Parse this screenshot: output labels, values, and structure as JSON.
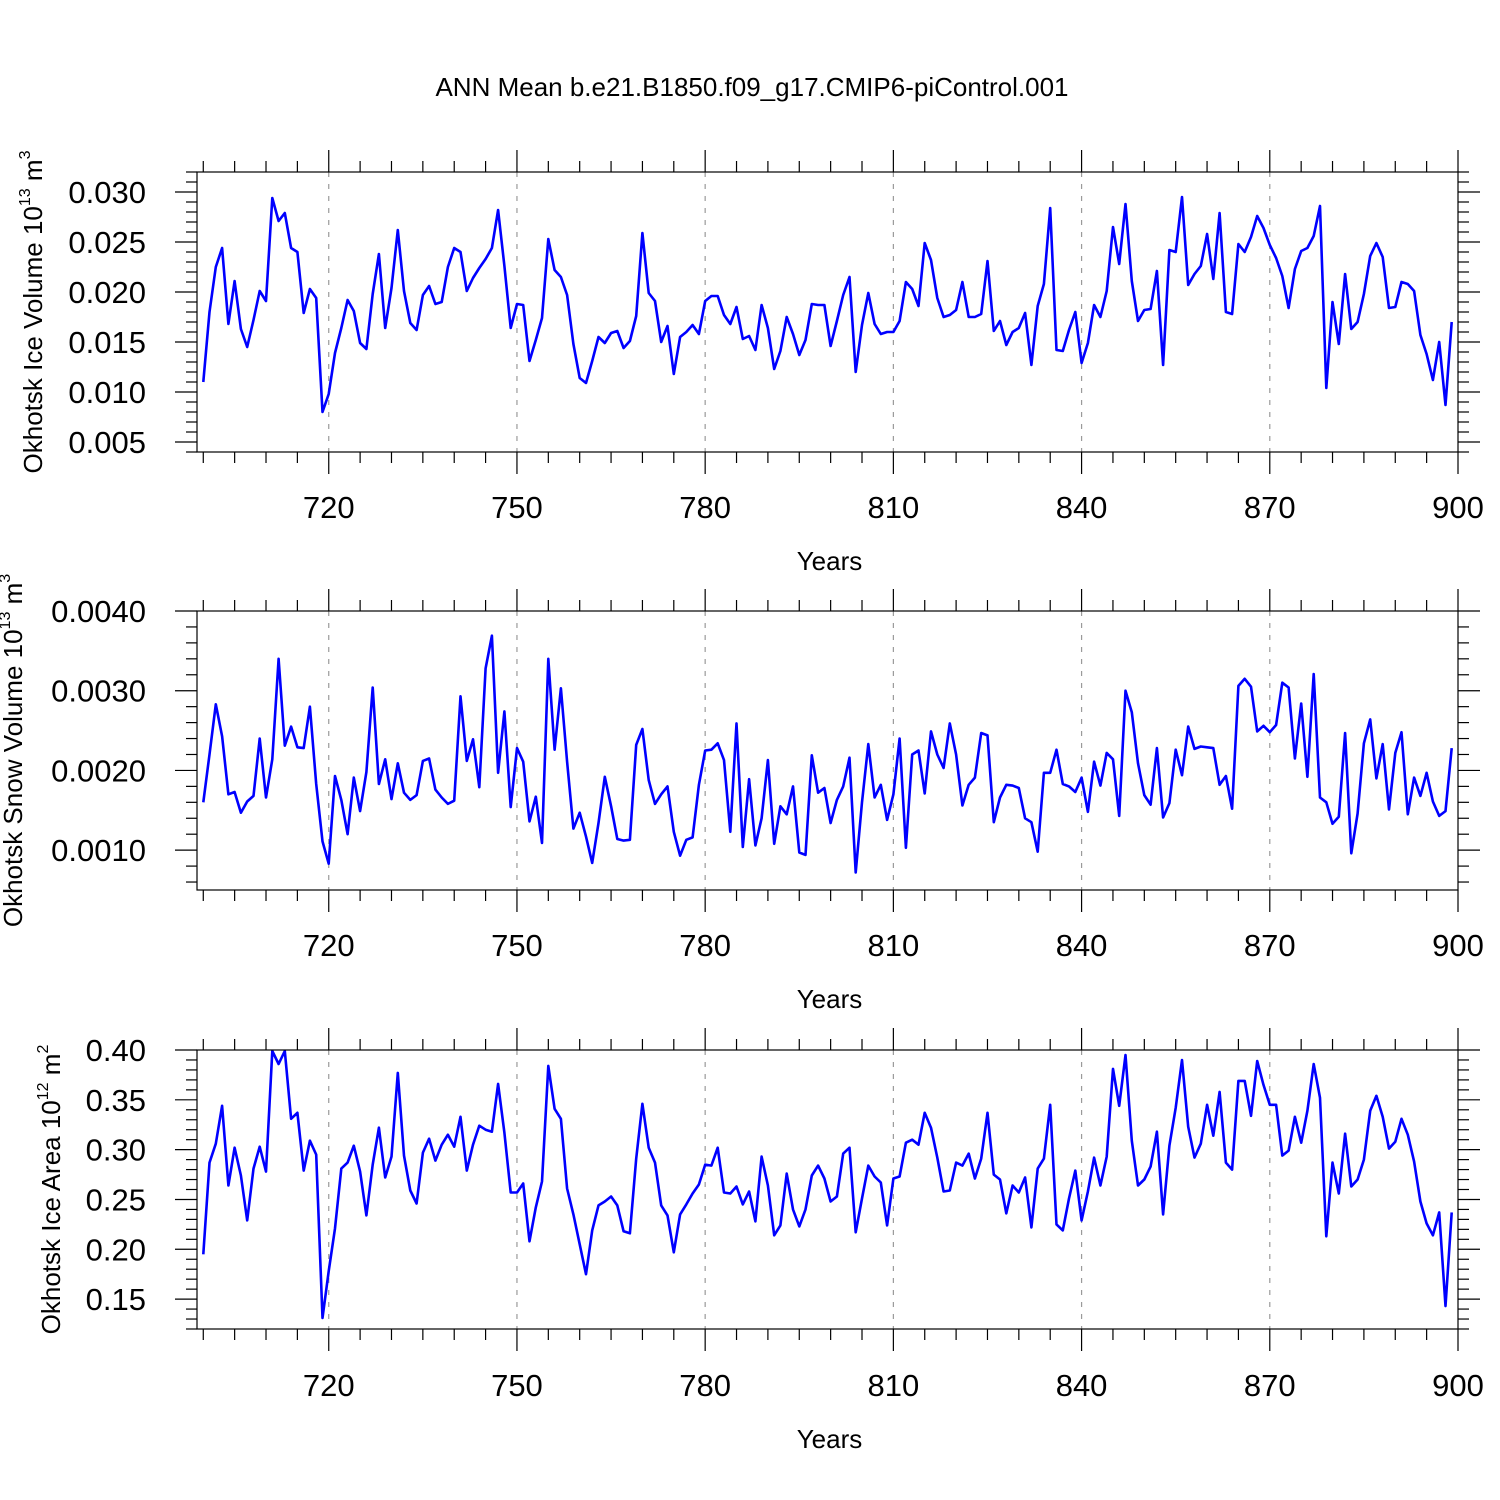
{
  "title": "ANN Mean b.e21.B1850.f09_g17.CMIP6-piControl.001",
  "colors": {
    "line": "#0000ff",
    "grid": "#9a9a9a",
    "frame": "#000000"
  },
  "chart_data": [
    {
      "type": "line",
      "ylabel_main": "Okhotsk Ice Volume 10",
      "ylabel_exp": "13",
      "ylabel_unit": " m",
      "ylabel_unit_exp": "3",
      "xlabel": "Years",
      "xlim": [
        699,
        900
      ],
      "ylim": [
        0.004,
        0.032
      ],
      "x_ticks": [
        "720",
        "750",
        "780",
        "810",
        "840",
        "870",
        "900"
      ],
      "y_ticks": [
        "0.005",
        "0.010",
        "0.015",
        "0.020",
        "0.025",
        "0.030"
      ],
      "grid": "vertical dashed",
      "x_start": 700,
      "values": [
        0.011,
        0.018,
        0.0225,
        0.0244,
        0.0168,
        0.0211,
        0.0163,
        0.0145,
        0.0172,
        0.0201,
        0.0191,
        0.0294,
        0.0271,
        0.0279,
        0.0244,
        0.024,
        0.0179,
        0.0203,
        0.0194,
        0.008,
        0.0098,
        0.0139,
        0.0164,
        0.0192,
        0.0181,
        0.0149,
        0.0143,
        0.0198,
        0.0238,
        0.0164,
        0.0204,
        0.0262,
        0.0201,
        0.0169,
        0.0162,
        0.0197,
        0.0206,
        0.0188,
        0.019,
        0.0225,
        0.0244,
        0.024,
        0.0201,
        0.0214,
        0.0224,
        0.0233,
        0.0244,
        0.0282,
        0.0226,
        0.0164,
        0.0188,
        0.0187,
        0.0131,
        0.0152,
        0.0174,
        0.0253,
        0.0222,
        0.0215,
        0.0197,
        0.0148,
        0.0114,
        0.0109,
        0.0131,
        0.0155,
        0.0149,
        0.0159,
        0.0161,
        0.0144,
        0.0151,
        0.0176,
        0.0259,
        0.0199,
        0.0191,
        0.015,
        0.0166,
        0.0118,
        0.0155,
        0.016,
        0.0167,
        0.0158,
        0.0191,
        0.0196,
        0.0196,
        0.0177,
        0.0168,
        0.0185,
        0.0153,
        0.0156,
        0.0142,
        0.0187,
        0.0164,
        0.0123,
        0.0141,
        0.0175,
        0.0158,
        0.0137,
        0.0152,
        0.0188,
        0.0187,
        0.0187,
        0.0146,
        0.0171,
        0.0197,
        0.0215,
        0.012,
        0.0167,
        0.0199,
        0.0168,
        0.0158,
        0.016,
        0.016,
        0.0171,
        0.021,
        0.0203,
        0.0186,
        0.0249,
        0.0232,
        0.0194,
        0.0175,
        0.0177,
        0.0182,
        0.021,
        0.0175,
        0.0175,
        0.0178,
        0.0231,
        0.0161,
        0.0171,
        0.0147,
        0.016,
        0.0164,
        0.0179,
        0.0127,
        0.0186,
        0.0208,
        0.0284,
        0.0142,
        0.0141,
        0.0162,
        0.018,
        0.0129,
        0.0149,
        0.0187,
        0.0175,
        0.0201,
        0.0265,
        0.0228,
        0.0288,
        0.0211,
        0.0171,
        0.0182,
        0.0183,
        0.0221,
        0.0127,
        0.0242,
        0.024,
        0.0295,
        0.0207,
        0.0218,
        0.0226,
        0.0258,
        0.0213,
        0.0279,
        0.018,
        0.0178,
        0.0248,
        0.024,
        0.0255,
        0.0276,
        0.0264,
        0.0247,
        0.0234,
        0.0216,
        0.0184,
        0.0223,
        0.0241,
        0.0244,
        0.0256,
        0.0286,
        0.0104,
        0.019,
        0.0148,
        0.0218,
        0.0163,
        0.017,
        0.0198,
        0.0236,
        0.0249,
        0.0235,
        0.0184,
        0.0185,
        0.021,
        0.0208,
        0.0201,
        0.0157,
        0.0138,
        0.0112,
        0.015,
        0.0087,
        0.017
      ]
    },
    {
      "type": "line",
      "ylabel_main": "Okhotsk Snow Volume 10",
      "ylabel_exp": "13",
      "ylabel_unit": " m",
      "ylabel_unit_exp": "3",
      "xlabel": "Years",
      "xlim": [
        699,
        900
      ],
      "ylim": [
        0.0005,
        0.004
      ],
      "x_ticks": [
        "720",
        "750",
        "780",
        "810",
        "840",
        "870",
        "900"
      ],
      "y_ticks": [
        "0.0010",
        "0.0020",
        "0.0030",
        "0.0040"
      ],
      "grid": "vertical dashed",
      "x_start": 700,
      "values": [
        0.0016,
        0.0022,
        0.00283,
        0.00243,
        0.0017,
        0.00173,
        0.00147,
        0.00161,
        0.00168,
        0.0024,
        0.00166,
        0.00214,
        0.0034,
        0.00231,
        0.00255,
        0.00229,
        0.00228,
        0.0028,
        0.00183,
        0.00111,
        0.00083,
        0.00193,
        0.00163,
        0.0012,
        0.00191,
        0.00149,
        0.00198,
        0.00304,
        0.00183,
        0.00214,
        0.00164,
        0.00209,
        0.00172,
        0.00163,
        0.00169,
        0.00212,
        0.00215,
        0.00176,
        0.00166,
        0.00158,
        0.00162,
        0.00293,
        0.00212,
        0.00239,
        0.00179,
        0.00328,
        0.00369,
        0.00197,
        0.00274,
        0.00154,
        0.00228,
        0.00211,
        0.00136,
        0.00167,
        0.00109,
        0.0034,
        0.00226,
        0.00303,
        0.00211,
        0.00127,
        0.00147,
        0.00117,
        0.00084,
        0.00134,
        0.00192,
        0.00155,
        0.00114,
        0.00112,
        0.00113,
        0.00232,
        0.00252,
        0.00188,
        0.00158,
        0.0017,
        0.0018,
        0.00123,
        0.00093,
        0.00113,
        0.00116,
        0.00182,
        0.00225,
        0.00226,
        0.00234,
        0.00213,
        0.00123,
        0.00259,
        0.00104,
        0.00189,
        0.00106,
        0.0014,
        0.00213,
        0.00108,
        0.00155,
        0.00145,
        0.0018,
        0.00097,
        0.00094,
        0.00219,
        0.00172,
        0.00178,
        0.00134,
        0.00163,
        0.0018,
        0.00216,
        0.00072,
        0.0016,
        0.00233,
        0.00166,
        0.00182,
        0.00138,
        0.0017,
        0.0024,
        0.00103,
        0.0022,
        0.00225,
        0.00171,
        0.00249,
        0.0022,
        0.00203,
        0.00259,
        0.0022,
        0.00156,
        0.00182,
        0.00191,
        0.00247,
        0.00244,
        0.00135,
        0.00166,
        0.00182,
        0.00181,
        0.00178,
        0.0014,
        0.00135,
        0.00098,
        0.00197,
        0.00197,
        0.00226,
        0.00183,
        0.0018,
        0.00173,
        0.00191,
        0.00148,
        0.00211,
        0.00181,
        0.00222,
        0.00214,
        0.00143,
        0.003,
        0.00273,
        0.00209,
        0.00169,
        0.00157,
        0.00228,
        0.00141,
        0.00159,
        0.00226,
        0.00194,
        0.00255,
        0.00227,
        0.0023,
        0.00229,
        0.00228,
        0.00182,
        0.00193,
        0.00152,
        0.00306,
        0.00315,
        0.00305,
        0.00249,
        0.00256,
        0.00248,
        0.00257,
        0.0031,
        0.00304,
        0.00215,
        0.00284,
        0.00192,
        0.00321,
        0.00166,
        0.0016,
        0.00133,
        0.00142,
        0.00247,
        0.00096,
        0.00146,
        0.00234,
        0.00264,
        0.0019,
        0.00233,
        0.00151,
        0.00222,
        0.00248,
        0.00145,
        0.00191,
        0.00168,
        0.00197,
        0.00161,
        0.00143,
        0.00149,
        0.00228
      ]
    },
    {
      "type": "line",
      "ylabel_main": "Okhotsk Ice Area 10",
      "ylabel_exp": "12",
      "ylabel_unit": " m",
      "ylabel_unit_exp": "2",
      "xlabel": "Years",
      "xlim": [
        699,
        900
      ],
      "ylim": [
        0.12,
        0.4
      ],
      "x_ticks": [
        "720",
        "750",
        "780",
        "810",
        "840",
        "870",
        "900"
      ],
      "y_ticks": [
        "0.15",
        "0.20",
        "0.25",
        "0.30",
        "0.35",
        "0.40"
      ],
      "grid": "vertical dashed",
      "x_start": 700,
      "values": [
        0.195,
        0.287,
        0.306,
        0.344,
        0.264,
        0.302,
        0.274,
        0.229,
        0.281,
        0.303,
        0.278,
        0.399,
        0.386,
        0.399,
        0.331,
        0.337,
        0.279,
        0.309,
        0.295,
        0.131,
        0.178,
        0.221,
        0.281,
        0.287,
        0.304,
        0.278,
        0.234,
        0.285,
        0.322,
        0.272,
        0.293,
        0.377,
        0.294,
        0.259,
        0.246,
        0.297,
        0.311,
        0.289,
        0.305,
        0.315,
        0.303,
        0.333,
        0.279,
        0.305,
        0.324,
        0.32,
        0.318,
        0.366,
        0.317,
        0.257,
        0.257,
        0.266,
        0.208,
        0.242,
        0.268,
        0.384,
        0.341,
        0.331,
        0.261,
        0.235,
        0.205,
        0.175,
        0.219,
        0.244,
        0.248,
        0.253,
        0.244,
        0.218,
        0.216,
        0.291,
        0.346,
        0.302,
        0.287,
        0.244,
        0.234,
        0.197,
        0.235,
        0.245,
        0.256,
        0.265,
        0.285,
        0.284,
        0.302,
        0.257,
        0.256,
        0.263,
        0.245,
        0.258,
        0.228,
        0.293,
        0.264,
        0.214,
        0.224,
        0.276,
        0.24,
        0.223,
        0.24,
        0.274,
        0.284,
        0.271,
        0.248,
        0.253,
        0.296,
        0.302,
        0.217,
        0.251,
        0.284,
        0.273,
        0.267,
        0.224,
        0.271,
        0.273,
        0.307,
        0.31,
        0.305,
        0.337,
        0.322,
        0.292,
        0.258,
        0.259,
        0.287,
        0.284,
        0.296,
        0.271,
        0.291,
        0.337,
        0.275,
        0.27,
        0.236,
        0.264,
        0.257,
        0.272,
        0.222,
        0.281,
        0.291,
        0.345,
        0.225,
        0.219,
        0.251,
        0.279,
        0.229,
        0.258,
        0.292,
        0.264,
        0.293,
        0.381,
        0.344,
        0.395,
        0.309,
        0.264,
        0.27,
        0.283,
        0.318,
        0.235,
        0.304,
        0.342,
        0.39,
        0.323,
        0.292,
        0.306,
        0.345,
        0.314,
        0.358,
        0.287,
        0.28,
        0.369,
        0.369,
        0.334,
        0.389,
        0.365,
        0.345,
        0.345,
        0.294,
        0.299,
        0.333,
        0.307,
        0.339,
        0.386,
        0.352,
        0.213,
        0.287,
        0.256,
        0.316,
        0.263,
        0.27,
        0.29,
        0.339,
        0.354,
        0.333,
        0.301,
        0.308,
        0.331,
        0.315,
        0.288,
        0.248,
        0.226,
        0.214,
        0.237,
        0.143,
        0.237
      ]
    }
  ]
}
